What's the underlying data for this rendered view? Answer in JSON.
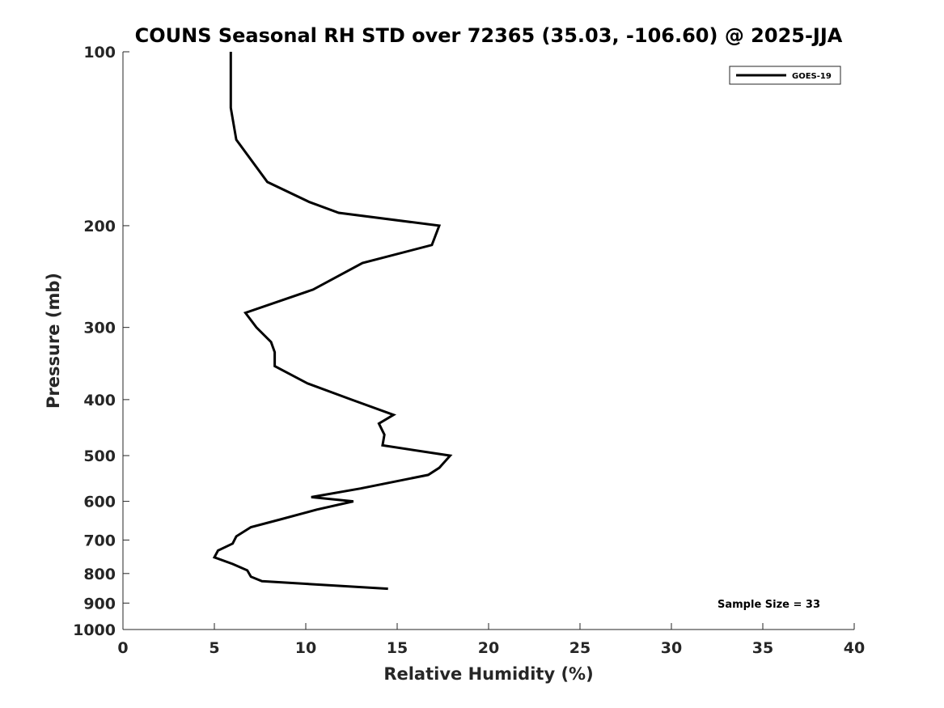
{
  "chart_data": {
    "type": "line",
    "title": "COUNS Seasonal RH STD over 72365 (35.03, -106.60) @ 2025-JJA",
    "xlabel": "Relative Humidity (%)",
    "ylabel": "Pressure (mb)",
    "xlim": [
      0,
      40
    ],
    "ylim": [
      100,
      1000
    ],
    "y_scale": "log",
    "y_reversed": true,
    "grid": false,
    "x_ticks": [
      0,
      5,
      10,
      15,
      20,
      25,
      30,
      35,
      40
    ],
    "y_ticks": [
      100,
      200,
      300,
      400,
      500,
      600,
      700,
      800,
      900,
      1000
    ],
    "legend": {
      "position": "top-right",
      "entries": [
        "GOES-19"
      ]
    },
    "annotation": "Sample Size = 33",
    "series": [
      {
        "name": "GOES-19",
        "color": "#000000",
        "points": [
          {
            "x": 5.9,
            "p": 100
          },
          {
            "x": 5.9,
            "p": 125
          },
          {
            "x": 6.2,
            "p": 142
          },
          {
            "x": 7.9,
            "p": 168
          },
          {
            "x": 10.2,
            "p": 182
          },
          {
            "x": 11.8,
            "p": 190
          },
          {
            "x": 17.3,
            "p": 200
          },
          {
            "x": 16.9,
            "p": 216
          },
          {
            "x": 13.1,
            "p": 232
          },
          {
            "x": 10.4,
            "p": 258
          },
          {
            "x": 6.7,
            "p": 283
          },
          {
            "x": 7.3,
            "p": 300
          },
          {
            "x": 8.1,
            "p": 318
          },
          {
            "x": 8.3,
            "p": 331
          },
          {
            "x": 8.3,
            "p": 350
          },
          {
            "x": 10.1,
            "p": 375
          },
          {
            "x": 12.5,
            "p": 400
          },
          {
            "x": 14.8,
            "p": 425
          },
          {
            "x": 14.0,
            "p": 440
          },
          {
            "x": 14.3,
            "p": 460
          },
          {
            "x": 14.2,
            "p": 480
          },
          {
            "x": 17.9,
            "p": 500
          },
          {
            "x": 17.3,
            "p": 525
          },
          {
            "x": 16.7,
            "p": 540
          },
          {
            "x": 13.0,
            "p": 570
          },
          {
            "x": 10.3,
            "p": 590
          },
          {
            "x": 12.6,
            "p": 600
          },
          {
            "x": 10.6,
            "p": 620
          },
          {
            "x": 8.6,
            "p": 645
          },
          {
            "x": 7.0,
            "p": 665
          },
          {
            "x": 6.2,
            "p": 690
          },
          {
            "x": 6.0,
            "p": 710
          },
          {
            "x": 5.2,
            "p": 730
          },
          {
            "x": 5.0,
            "p": 750
          },
          {
            "x": 6.0,
            "p": 770
          },
          {
            "x": 6.8,
            "p": 790
          },
          {
            "x": 7.0,
            "p": 810
          },
          {
            "x": 7.6,
            "p": 825
          },
          {
            "x": 14.5,
            "p": 850
          }
        ]
      }
    ]
  }
}
